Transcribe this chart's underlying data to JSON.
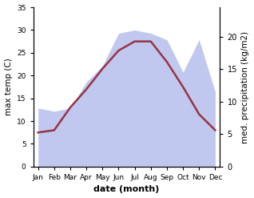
{
  "months": [
    "Jan",
    "Feb",
    "Mar",
    "Apr",
    "May",
    "Jun",
    "Jul",
    "Aug",
    "Sep",
    "Oct",
    "Nov",
    "Dec"
  ],
  "temp": [
    7.5,
    8.0,
    13.0,
    17.0,
    21.5,
    25.5,
    27.5,
    27.5,
    23.0,
    17.5,
    11.5,
    8.0
  ],
  "precip": [
    9.0,
    8.5,
    9.0,
    13.0,
    15.5,
    20.5,
    21.0,
    20.5,
    19.5,
    14.5,
    19.5,
    11.5
  ],
  "temp_color": "#993344",
  "precip_fill_color": "#c0c8f0",
  "temp_ylim": [
    0,
    35
  ],
  "precip_ylim": [
    0,
    24.5
  ],
  "temp_yticks": [
    0,
    5,
    10,
    15,
    20,
    25,
    30,
    35
  ],
  "precip_yticks": [
    0,
    5,
    10,
    15,
    20
  ],
  "xlabel": "date (month)",
  "ylabel_left": "max temp (C)",
  "ylabel_right": "med. precipitation (kg/m2)",
  "bg_color": "#ffffff"
}
